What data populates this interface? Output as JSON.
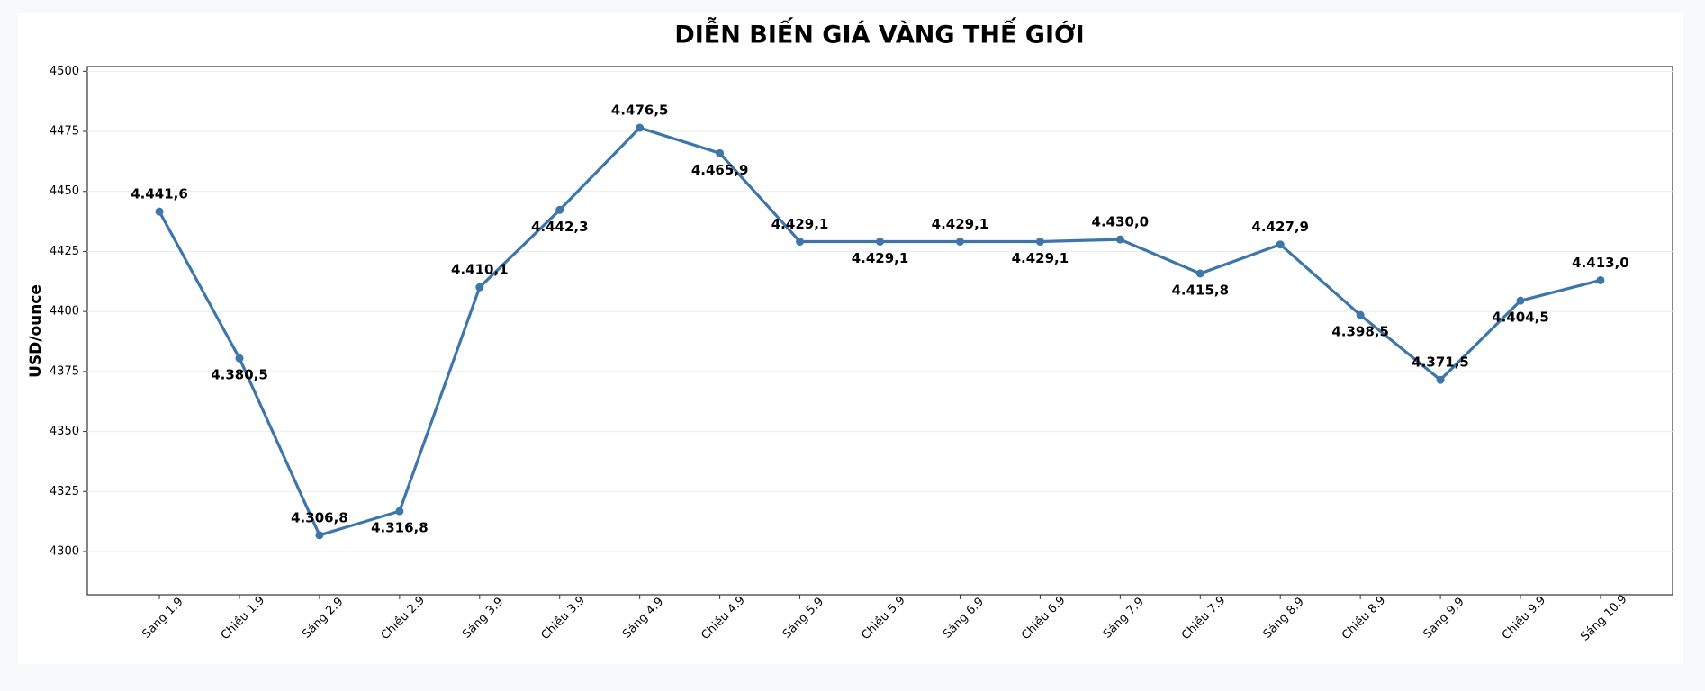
{
  "chart_data": {
    "type": "line",
    "title": "DIỄN BIẾN GIÁ VÀNG THẾ GIỚI",
    "y_label": "USD/ounce",
    "categories": [
      "Sáng 1.9",
      "Chiều 1.9",
      "Sáng 2.9",
      "Chiều 2.9",
      "Sáng 3.9",
      "Chiều 3.9",
      "Sáng 4.9",
      "Chiều 4.9",
      "Sáng 5.9",
      "Chiều 5.9",
      "Sáng 6.9",
      "Chiều 6.9",
      "Sáng 7.9",
      "Chiều 7.9",
      "Sáng 8.9",
      "Chiều 8.9",
      "Sáng 9.9",
      "Chiều 9.9",
      "Sáng 10.9"
    ],
    "series": [
      {
        "name": "Giá vàng",
        "color": "#3e76aa",
        "values": [
          4441.6,
          4380.5,
          4306.8,
          4316.8,
          4410.1,
          4442.3,
          4476.5,
          4465.9,
          4429.1,
          4429.1,
          4429.1,
          4429.1,
          4430.0,
          4415.8,
          4427.9,
          4398.5,
          4371.5,
          4404.5,
          4413.0
        ],
        "value_labels": [
          "4.441,6",
          "4.380,5",
          "4.306,8",
          "4.316,8",
          "4.410,1",
          "4.442,3",
          "4.476,5",
          "4.465,9",
          "4.429,1",
          "4.429,1",
          "4.429,1",
          "4.429,1",
          "4.430,0",
          "4.415,8",
          "4.427,9",
          "4.398,5",
          "4.371,5",
          "4.404,5",
          "4.413,0"
        ]
      }
    ],
    "ylim": [
      4282,
      4502
    ],
    "yticks": [
      4300,
      4325,
      4350,
      4375,
      4400,
      4425,
      4450,
      4475,
      4500
    ],
    "grid": true
  }
}
